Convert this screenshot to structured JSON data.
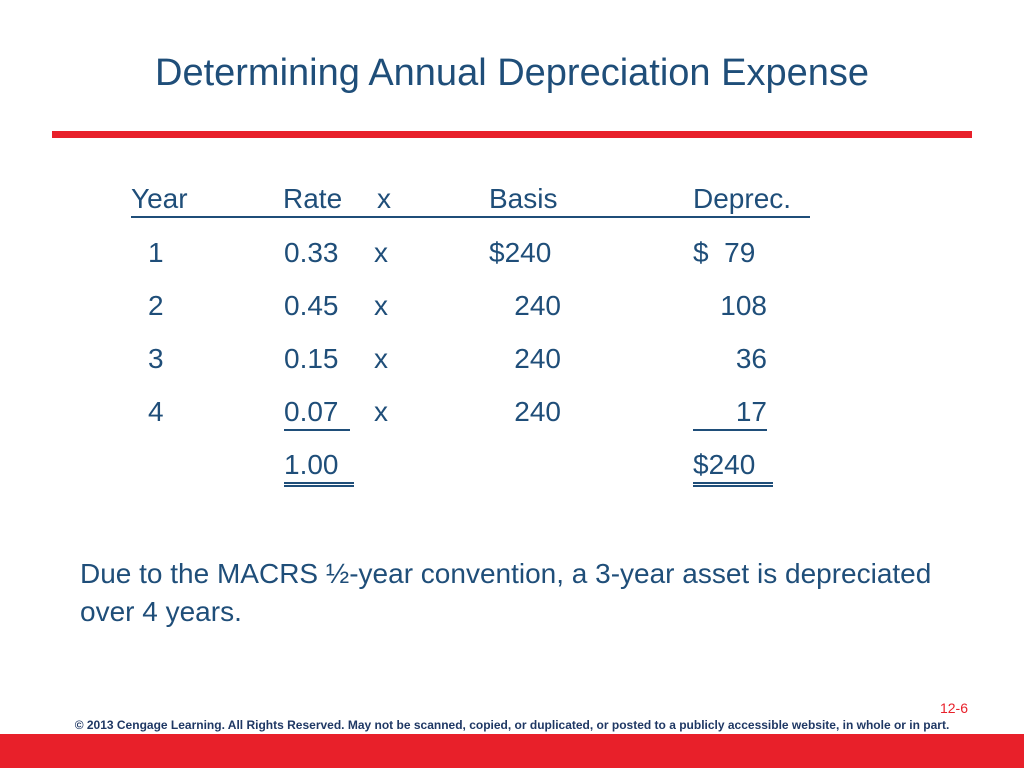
{
  "slide": {
    "title": "Determining Annual Depreciation Expense",
    "page_number": "12-6",
    "copyright": "© 2013 Cengage Learning. All Rights Reserved. May not be scanned, copied, or duplicated, or posted to a publicly accessible website, in whole or in part.",
    "note": "Due to the MACRS ½-year convention, a 3-year asset is depreciated over 4 years."
  },
  "table": {
    "headers": {
      "year": "Year",
      "rate": "Rate",
      "x": "x",
      "basis": "Basis",
      "deprec": "Deprec."
    },
    "rows": [
      {
        "year": "1",
        "rate": "0.33",
        "x": "x",
        "basis": "$240",
        "deprec": "$  79"
      },
      {
        "year": "2",
        "rate": "0.45",
        "x": "x",
        "basis": "240",
        "deprec": "108"
      },
      {
        "year": "3",
        "rate": "0.15",
        "x": "x",
        "basis": "240",
        "deprec": "36"
      },
      {
        "year": "4",
        "rate": "0.07",
        "x": "x",
        "basis": "240",
        "deprec": "17"
      }
    ],
    "totals": {
      "rate": "1.00",
      "deprec": "$240"
    }
  },
  "colors": {
    "accent": "#e8202a",
    "text": "#1f4e79"
  }
}
